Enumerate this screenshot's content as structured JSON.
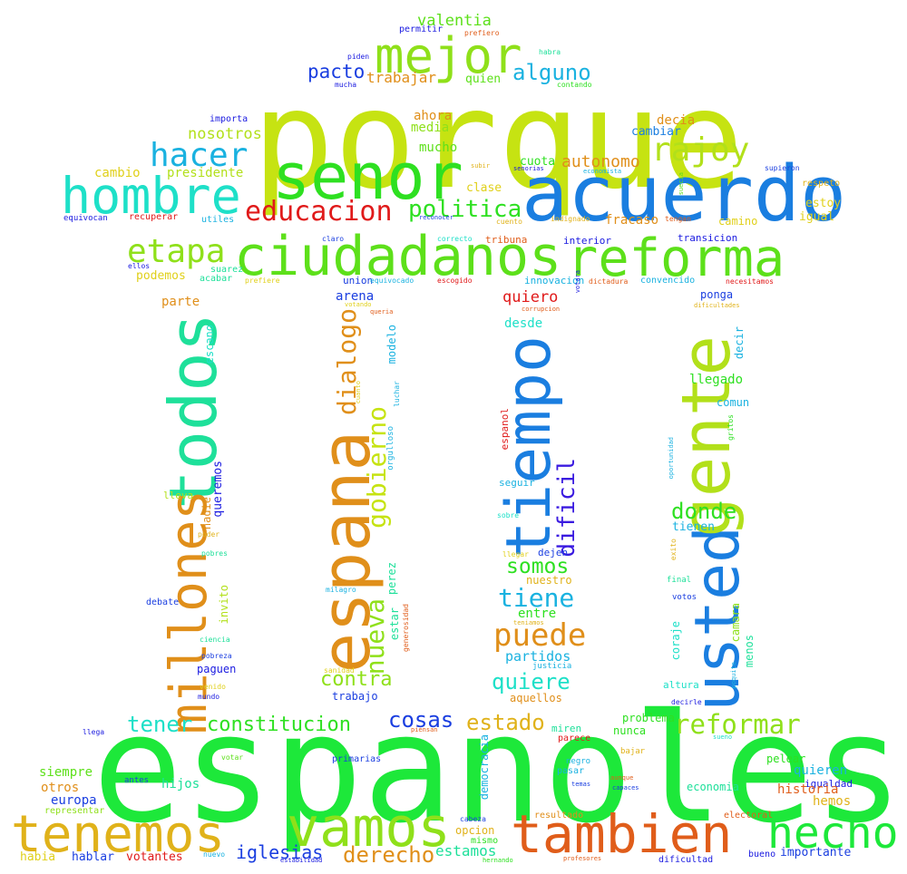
{
  "words": [
    {
      "text": "porque",
      "color": "#c6e312"
    },
    {
      "text": "espanoles",
      "color": "#1de83a"
    },
    {
      "text": "acuerdo",
      "color": "#1a7ee0"
    },
    {
      "text": "ciudadanos",
      "color": "#5de01a"
    },
    {
      "text": "reforma",
      "color": "#5de01a"
    },
    {
      "text": "senor",
      "color": "#2ee021"
    },
    {
      "text": "hombre",
      "color": "#1ee0c8"
    },
    {
      "text": "mejor",
      "color": "#8fe01a"
    },
    {
      "text": "tambien",
      "color": "#e05d1a"
    },
    {
      "text": "tenemos",
      "color": "#e0b21a"
    },
    {
      "text": "vamos",
      "color": "#8fe01a"
    },
    {
      "text": "hecho",
      "color": "#1de83a"
    },
    {
      "text": "espana",
      "color": "#e08f1a"
    },
    {
      "text": "todos",
      "color": "#1ee09a"
    },
    {
      "text": "millones",
      "color": "#e08f1a"
    },
    {
      "text": "tiempo",
      "color": "#1a7ee0"
    },
    {
      "text": "usted",
      "color": "#1a7ee0"
    },
    {
      "text": "gente",
      "color": "#b2e01a"
    },
    {
      "text": "educacion",
      "color": "#e01a1a"
    },
    {
      "text": "etapa",
      "color": "#8fe01a"
    },
    {
      "text": "hacer",
      "color": "#1ab2e0"
    },
    {
      "text": "rajoy",
      "color": "#b2e01a"
    },
    {
      "text": "politica",
      "color": "#2ee021"
    },
    {
      "text": "alguno",
      "color": "#1ab2e0"
    },
    {
      "text": "pacto",
      "color": "#1a3ee0"
    },
    {
      "text": "gobierno",
      "color": "#c6e312"
    },
    {
      "text": "dialogo",
      "color": "#e08f1a"
    },
    {
      "text": "nueva",
      "color": "#8fe01a"
    },
    {
      "text": "dificil",
      "color": "#3a1ae0"
    },
    {
      "text": "reformar",
      "color": "#8fe01a"
    },
    {
      "text": "constitucion",
      "color": "#2ee021"
    },
    {
      "text": "tener",
      "color": "#1ee0c8"
    },
    {
      "text": "cosas",
      "color": "#1a3ee0"
    },
    {
      "text": "estado",
      "color": "#e0b21a"
    },
    {
      "text": "contra",
      "color": "#8fe01a"
    },
    {
      "text": "puede",
      "color": "#e08f1a"
    },
    {
      "text": "quiere",
      "color": "#1ee0c8"
    },
    {
      "text": "tiene",
      "color": "#1ab2e0"
    },
    {
      "text": "somos",
      "color": "#2ee021"
    },
    {
      "text": "donde",
      "color": "#2ee021"
    },
    {
      "text": "derecho",
      "color": "#e08f1a"
    },
    {
      "text": "iglesias",
      "color": "#1a3ee0"
    },
    {
      "text": "estamos",
      "color": "#1ee09a"
    },
    {
      "text": "autonomo",
      "color": "#e08f1a"
    },
    {
      "text": "valentia",
      "color": "#5de01a"
    },
    {
      "text": "trabajar",
      "color": "#e08f1a"
    },
    {
      "text": "quien",
      "color": "#5de01a"
    },
    {
      "text": "nosotros",
      "color": "#b2e01a"
    },
    {
      "text": "presidente",
      "color": "#b2e01a"
    },
    {
      "text": "cambio",
      "color": "#e0d01a"
    },
    {
      "text": "ahora",
      "color": "#e08f1a"
    },
    {
      "text": "media",
      "color": "#8fe01a"
    },
    {
      "text": "mucho",
      "color": "#5de01a"
    },
    {
      "text": "decia",
      "color": "#e08f1a"
    },
    {
      "text": "cambiar",
      "color": "#1a7ee0"
    },
    {
      "text": "clase",
      "color": "#e0d01a"
    },
    {
      "text": "cuota",
      "color": "#2ee021"
    },
    {
      "text": "fracaso",
      "color": "#e08f1a"
    },
    {
      "text": "camino",
      "color": "#e0d01a"
    },
    {
      "text": "estoy",
      "color": "#e0d01a"
    },
    {
      "text": "igual",
      "color": "#e0d01a"
    },
    {
      "text": "respeto",
      "color": "#e0b21a"
    },
    {
      "text": "supieron",
      "color": "#1a3ee0"
    },
    {
      "text": "equivocan",
      "color": "#1a1ae0"
    },
    {
      "text": "recuperar",
      "color": "#e01a1a"
    },
    {
      "text": "utiles",
      "color": "#1ab2e0"
    },
    {
      "text": "importa",
      "color": "#1a1ae0"
    },
    {
      "text": "interior",
      "color": "#1a1ae0"
    },
    {
      "text": "tribuna",
      "color": "#e05d1a"
    },
    {
      "text": "transicion",
      "color": "#1a1ae0"
    },
    {
      "text": "podemos",
      "color": "#e0d01a"
    },
    {
      "text": "suarez",
      "color": "#1ee09a"
    },
    {
      "text": "acabar",
      "color": "#1ee09a"
    },
    {
      "text": "union",
      "color": "#1a3ee0"
    },
    {
      "text": "innovacion",
      "color": "#1ab2e0"
    },
    {
      "text": "convencido",
      "color": "#1ab2e0"
    },
    {
      "text": "arena",
      "color": "#1a3ee0"
    },
    {
      "text": "quiero",
      "color": "#e01a1a"
    },
    {
      "text": "desde",
      "color": "#1ee0c8"
    },
    {
      "text": "ponga",
      "color": "#1a3ee0"
    },
    {
      "text": "parte",
      "color": "#e08f1a"
    },
    {
      "text": "escano",
      "color": "#1ee0c8"
    },
    {
      "text": "modelo",
      "color": "#1ab2e0"
    },
    {
      "text": "llegado",
      "color": "#2ee021"
    },
    {
      "text": "comun",
      "color": "#1ab2e0"
    },
    {
      "text": "decir",
      "color": "#1ab2e0"
    },
    {
      "text": "queremos",
      "color": "#1a1ae0"
    },
    {
      "text": "nadie",
      "color": "#e08f1a"
    },
    {
      "text": "lleva",
      "color": "#b2e01a"
    },
    {
      "text": "seguir",
      "color": "#1ab2e0"
    },
    {
      "text": "nuestro",
      "color": "#e0b21a"
    },
    {
      "text": "dejen",
      "color": "#1a3ee0"
    },
    {
      "text": "tienen",
      "color": "#1ab2e0"
    },
    {
      "text": "entre",
      "color": "#2ee021"
    },
    {
      "text": "partidos",
      "color": "#1ab2e0"
    },
    {
      "text": "invito",
      "color": "#b2e01a"
    },
    {
      "text": "paguen",
      "color": "#1a1ae0"
    },
    {
      "text": "perez",
      "color": "#1ee09a"
    },
    {
      "text": "estar",
      "color": "#1ee09a"
    },
    {
      "text": "trabajo",
      "color": "#1a3ee0"
    },
    {
      "text": "aquellos",
      "color": "#e08f1a"
    },
    {
      "text": "coraje",
      "color": "#1ee0c8"
    },
    {
      "text": "camara",
      "color": "#8fe01a"
    },
    {
      "text": "menos",
      "color": "#1ee09a"
    },
    {
      "text": "votos",
      "color": "#1a3ee0"
    },
    {
      "text": "altura",
      "color": "#1ee0c8"
    },
    {
      "text": "siempre",
      "color": "#5de01a"
    },
    {
      "text": "otros",
      "color": "#e08f1a"
    },
    {
      "text": "europa",
      "color": "#1a3ee0"
    },
    {
      "text": "hijos",
      "color": "#1ee09a"
    },
    {
      "text": "democracia",
      "color": "#1ab2e0"
    },
    {
      "text": "problema",
      "color": "#2ee021"
    },
    {
      "text": "nunca",
      "color": "#2ee021"
    },
    {
      "text": "parece",
      "color": "#e01a1a"
    },
    {
      "text": "miren",
      "color": "#1ee09a"
    },
    {
      "text": "pasar",
      "color": "#1ab2e0"
    },
    {
      "text": "economia",
      "color": "#1ee09a"
    },
    {
      "text": "quieren",
      "color": "#1ab2e0"
    },
    {
      "text": "igualdad",
      "color": "#1a1ae0"
    },
    {
      "text": "pelear",
      "color": "#2ee021"
    },
    {
      "text": "historia",
      "color": "#e05d1a"
    },
    {
      "text": "hemos",
      "color": "#e0b21a"
    },
    {
      "text": "importante",
      "color": "#1a3ee0"
    },
    {
      "text": "hablar",
      "color": "#1a3ee0"
    },
    {
      "text": "votantes",
      "color": "#e01a1a"
    },
    {
      "text": "habia",
      "color": "#e0d01a"
    },
    {
      "text": "opcion",
      "color": "#e0b21a"
    },
    {
      "text": "mismo",
      "color": "#2ee021"
    },
    {
      "text": "resultado",
      "color": "#e08f1a"
    },
    {
      "text": "representar",
      "color": "#8fe01a"
    },
    {
      "text": "primarias",
      "color": "#1a3ee0"
    },
    {
      "text": "dificultad",
      "color": "#1a1ae0"
    },
    {
      "text": "bueno",
      "color": "#1a1ae0"
    },
    {
      "text": "electoral",
      "color": "#e05d1a"
    },
    {
      "text": "permitir",
      "color": "#1a1ae0"
    },
    {
      "text": "prefiero",
      "color": "#e05d1a"
    },
    {
      "text": "piden",
      "color": "#1a1ae0"
    },
    {
      "text": "habra",
      "color": "#1ee09a"
    },
    {
      "text": "mucha",
      "color": "#1a1ae0"
    },
    {
      "text": "contando",
      "color": "#2ee021"
    },
    {
      "text": "subir",
      "color": "#e0b21a"
    },
    {
      "text": "senorias",
      "color": "#1a1ae0"
    },
    {
      "text": "economista",
      "color": "#1ab2e0"
    },
    {
      "text": "suecia",
      "color": "#5de01a"
    },
    {
      "text": "reconocer",
      "color": "#1a3ee0"
    },
    {
      "text": "cuento",
      "color": "#e0b21a"
    },
    {
      "text": "indignado",
      "color": "#e0b21a"
    },
    {
      "text": "tengan",
      "color": "#e05d1a"
    },
    {
      "text": "ellos",
      "color": "#1a1ae0"
    },
    {
      "text": "claro",
      "color": "#1a3ee0"
    },
    {
      "text": "correcto",
      "color": "#1ee0c8"
    },
    {
      "text": "prefiere",
      "color": "#e0d01a"
    },
    {
      "text": "equivocado",
      "color": "#1ab2e0"
    },
    {
      "text": "escogido",
      "color": "#e01a1a"
    },
    {
      "text": "votara",
      "color": "#1a1ae0"
    },
    {
      "text": "dictadura",
      "color": "#e05d1a"
    },
    {
      "text": "necesitamos",
      "color": "#e01a1a"
    },
    {
      "text": "votando",
      "color": "#e0d01a"
    },
    {
      "text": "queria",
      "color": "#e05d1a"
    },
    {
      "text": "corrupcion",
      "color": "#e05d1a"
    },
    {
      "text": "dificultades",
      "color": "#e0b21a"
    },
    {
      "text": "cuanto",
      "color": "#e0d01a"
    },
    {
      "text": "luchar",
      "color": "#1ab2e0"
    },
    {
      "text": "orgulloso",
      "color": "#1ab2e0"
    },
    {
      "text": "espanol",
      "color": "#e01a1a"
    },
    {
      "text": "gritos",
      "color": "#2ee021"
    },
    {
      "text": "oportunidad",
      "color": "#1ab2e0"
    },
    {
      "text": "sobre",
      "color": "#1ee0c8"
    },
    {
      "text": "poder",
      "color": "#e0b21a"
    },
    {
      "text": "pobres",
      "color": "#1ee09a"
    },
    {
      "text": "llegar",
      "color": "#e0d01a"
    },
    {
      "text": "exito",
      "color": "#e0b21a"
    },
    {
      "text": "final",
      "color": "#1ee09a"
    },
    {
      "text": "debate",
      "color": "#1a3ee0"
    },
    {
      "text": "milagro",
      "color": "#1ab2e0"
    },
    {
      "text": "generosidad",
      "color": "#e05d1a"
    },
    {
      "text": "teniamos",
      "color": "#e0b21a"
    },
    {
      "text": "ciencia",
      "color": "#1ee09a"
    },
    {
      "text": "pobreza",
      "color": "#1a3ee0"
    },
    {
      "text": "sanidad",
      "color": "#e0d01a"
    },
    {
      "text": "justicia",
      "color": "#1ab2e0"
    },
    {
      "text": "poquito",
      "color": "#1ab2e0"
    },
    {
      "text": "venido",
      "color": "#e0d01a"
    },
    {
      "text": "mundo",
      "color": "#1a1ae0"
    },
    {
      "text": "decirle",
      "color": "#1a1ae0"
    },
    {
      "text": "llega",
      "color": "#1a1ae0"
    },
    {
      "text": "piensan",
      "color": "#e05d1a"
    },
    {
      "text": "sueno",
      "color": "#1ee0c8"
    },
    {
      "text": "bajar",
      "color": "#e0b21a"
    },
    {
      "text": "negro",
      "color": "#1ab2e0"
    },
    {
      "text": "votar",
      "color": "#5de01a"
    },
    {
      "text": "antes",
      "color": "#1a3ee0"
    },
    {
      "text": "temas",
      "color": "#1a3ee0"
    },
    {
      "text": "aunque",
      "color": "#e05d1a"
    },
    {
      "text": "capaces",
      "color": "#1a3ee0"
    },
    {
      "text": "cabeza",
      "color": "#1a3ee0"
    },
    {
      "text": "nuevo",
      "color": "#1ab2e0"
    },
    {
      "text": "estabilidad",
      "color": "#1a1ae0"
    },
    {
      "text": "hernando",
      "color": "#2ee021"
    },
    {
      "text": "profesores",
      "color": "#e05d1a"
    }
  ]
}
